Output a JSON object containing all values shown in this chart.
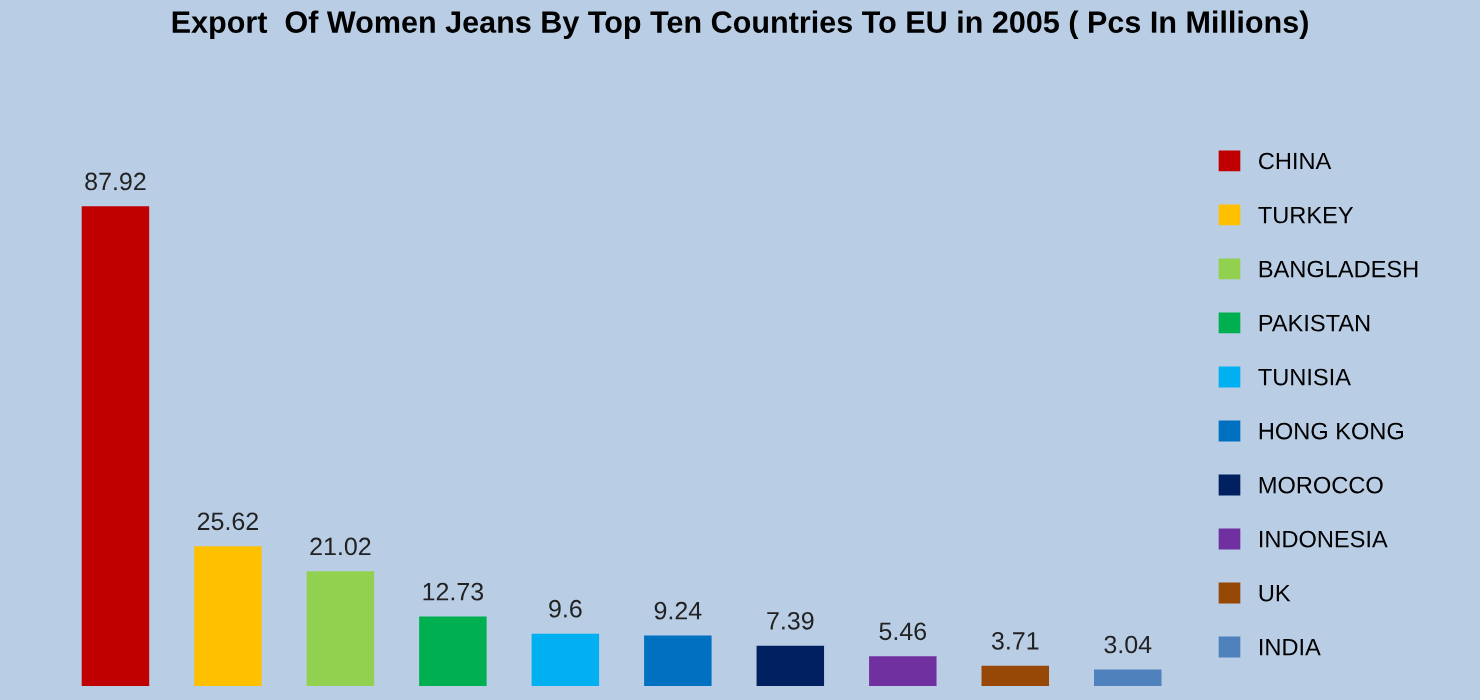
{
  "chart_data": {
    "type": "bar",
    "title": "Export  Of Women Jeans By Top Ten Countries To EU in 2005 ( Pcs In Millions)",
    "categories": [
      null,
      null,
      null,
      null,
      null,
      null,
      null,
      null,
      null,
      null
    ],
    "stacked": true,
    "series": [
      {
        "name": "CHINA",
        "color": "#c00000",
        "values": [
          87.92,
          null,
          null,
          null,
          null,
          null,
          null,
          null,
          null,
          null
        ]
      },
      {
        "name": "TURKEY",
        "color": "#ffc000",
        "values": [
          null,
          25.62,
          null,
          null,
          null,
          null,
          null,
          null,
          null,
          null
        ]
      },
      {
        "name": "BANGLADESH",
        "color": "#92d050",
        "values": [
          null,
          null,
          21.02,
          null,
          null,
          null,
          null,
          null,
          null,
          null
        ]
      },
      {
        "name": "PAKISTAN",
        "color": "#00b050",
        "values": [
          null,
          null,
          null,
          12.73,
          null,
          null,
          null,
          null,
          null,
          null
        ]
      },
      {
        "name": "TUNISIA",
        "color": "#00b0f0",
        "values": [
          null,
          null,
          null,
          null,
          9.6,
          null,
          null,
          null,
          null,
          null
        ]
      },
      {
        "name": "HONG KONG",
        "color": "#0070c0",
        "values": [
          null,
          null,
          null,
          null,
          null,
          9.24,
          null,
          null,
          null,
          null
        ]
      },
      {
        "name": "MOROCCO",
        "color": "#002060",
        "values": [
          null,
          null,
          null,
          null,
          null,
          null,
          7.39,
          null,
          null,
          null
        ]
      },
      {
        "name": "INDONESIA",
        "color": "#7030a0",
        "values": [
          null,
          null,
          null,
          null,
          null,
          null,
          null,
          5.46,
          null,
          null
        ]
      },
      {
        "name": "UK",
        "color": "#974706",
        "values": [
          null,
          null,
          null,
          null,
          null,
          null,
          null,
          null,
          3.71,
          null
        ]
      },
      {
        "name": "INDIA",
        "color": "#4f81bd",
        "values": [
          null,
          null,
          null,
          null,
          null,
          null,
          null,
          null,
          null,
          3.04
        ]
      }
    ],
    "data_labels": true,
    "legend": "right",
    "grid": false
  }
}
